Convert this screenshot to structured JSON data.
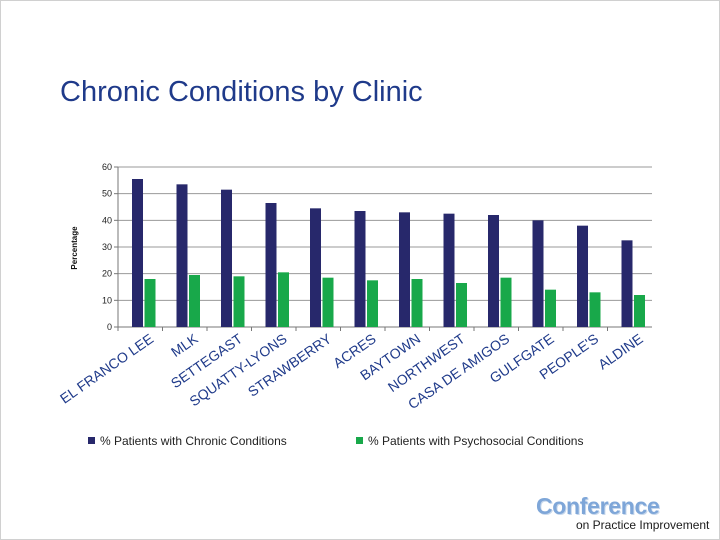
{
  "slide": {
    "title": "Chronic Conditions by Clinic"
  },
  "chart_data": {
    "type": "bar",
    "title": "Chronic Conditions by Clinic",
    "xlabel": "",
    "ylabel": "Percentage",
    "ylim": [
      0,
      60
    ],
    "yticks": [
      0,
      10,
      20,
      30,
      40,
      50,
      60
    ],
    "grid": true,
    "categories": [
      "EL FRANCO LEE",
      "MLK",
      "SETTEGAST",
      "SQUATTY-LYONS",
      "STRAWBERRY",
      "ACRES",
      "BAYTOWN",
      "NORTHWEST",
      "CASA DE AMIGOS",
      "GULFGATE",
      "PEOPLE'S",
      "ALDINE"
    ],
    "series": [
      {
        "name": "% Patients with  Chronic Conditions",
        "color": "#27286b",
        "values": [
          55.5,
          53.5,
          51.5,
          46.5,
          44.5,
          43.5,
          43,
          42.5,
          42,
          40,
          38,
          32.5
        ]
      },
      {
        "name": "% Patients with Psychosocial Conditions",
        "color": "#18a84a",
        "values": [
          18,
          19.5,
          19,
          20.5,
          18.5,
          17.5,
          18,
          16.5,
          18.5,
          14,
          13,
          12
        ]
      }
    ],
    "legend_position": "bottom"
  },
  "footer": {
    "logo_text": "Conference",
    "logo_subtext": "on Practice Improvement"
  }
}
